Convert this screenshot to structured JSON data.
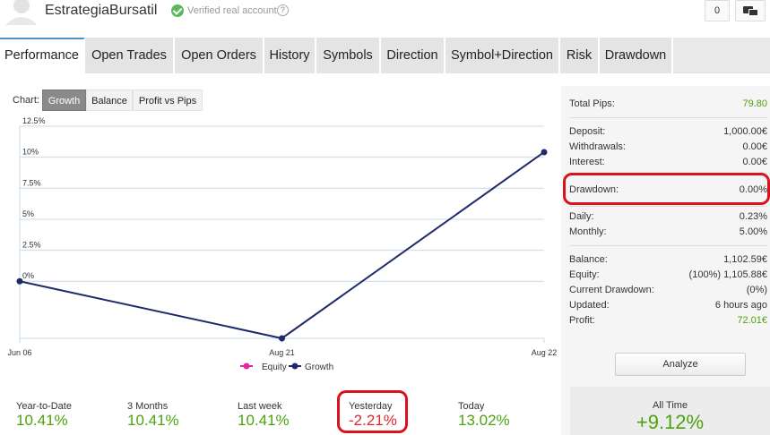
{
  "header": {
    "account_name": "EstrategiaBursatil",
    "verified_text": "Verified real account",
    "help_symbol": "?",
    "notification_count": "0"
  },
  "tabs": [
    {
      "label": "Performance"
    },
    {
      "label": "Open Trades"
    },
    {
      "label": "Open Orders"
    },
    {
      "label": "History"
    },
    {
      "label": "Symbols"
    },
    {
      "label": "Direction"
    },
    {
      "label": "Symbol+Direction"
    },
    {
      "label": "Risk"
    },
    {
      "label": "Drawdown"
    }
  ],
  "chart_controls": {
    "label": "Chart:",
    "options": [
      "Growth",
      "Balance",
      "Profit vs Pips"
    ],
    "selected": "Growth"
  },
  "chart_data": {
    "type": "line",
    "x": [
      "Jun 06",
      "Aug 21",
      "Aug 22"
    ],
    "series": [
      {
        "name": "Growth",
        "color": "#1f2a6b",
        "values": [
          0,
          -4.6,
          10.41
        ]
      }
    ],
    "y_ticks": [
      "0%",
      "2.5%",
      "5%",
      "7.5%",
      "10%",
      "12.5%"
    ],
    "y_tick_values": [
      0,
      2.5,
      5,
      7.5,
      10,
      12.5
    ],
    "ylim": [
      -4.6,
      12.5
    ],
    "legend": [
      {
        "name": "Equity",
        "color": "#e0289b"
      },
      {
        "name": "Growth",
        "color": "#1f2a6b"
      }
    ],
    "legend_position": "bottom",
    "grid": true
  },
  "stats": [
    {
      "label": "Year-to-Date",
      "value": "10.41%",
      "sign": "pos"
    },
    {
      "label": "3 Months",
      "value": "10.41%",
      "sign": "pos"
    },
    {
      "label": "Last week",
      "value": "10.41%",
      "sign": "pos"
    },
    {
      "label": "Yesterday",
      "value": "-2.21%",
      "sign": "neg"
    },
    {
      "label": "Today",
      "value": "13.02%",
      "sign": "pos"
    }
  ],
  "summary": {
    "total_pips": {
      "label": "Total Pips:",
      "value": "79.80"
    },
    "deposit": {
      "label": "Deposit:",
      "value": "1,000.00€"
    },
    "withdrawals": {
      "label": "Withdrawals:",
      "value": "0.00€"
    },
    "interest": {
      "label": "Interest:",
      "value": "0.00€"
    },
    "drawdown": {
      "label": "Drawdown:",
      "value": "0.00%"
    },
    "daily": {
      "label": "Daily:",
      "value": "0.23%"
    },
    "monthly": {
      "label": "Monthly:",
      "value": "5.00%"
    },
    "balance": {
      "label": "Balance:",
      "value": "1,102.59€"
    },
    "equity": {
      "label": "Equity:",
      "value": "(100%) 1,105.88€"
    },
    "current_drawdown": {
      "label": "Current Drawdown:",
      "value": "(0%)"
    },
    "updated": {
      "label": "Updated:",
      "value": "6 hours ago"
    },
    "profit": {
      "label": "Profit:",
      "value": "72.01€"
    },
    "analyze_label": "Analyze",
    "all_time": {
      "label": "All Time",
      "value": "+9.12%"
    }
  },
  "colors": {
    "positive": "#4ca30d",
    "negative": "#e0262c",
    "highlight": "#d8131b",
    "tab_accent": "#4a90c2"
  }
}
